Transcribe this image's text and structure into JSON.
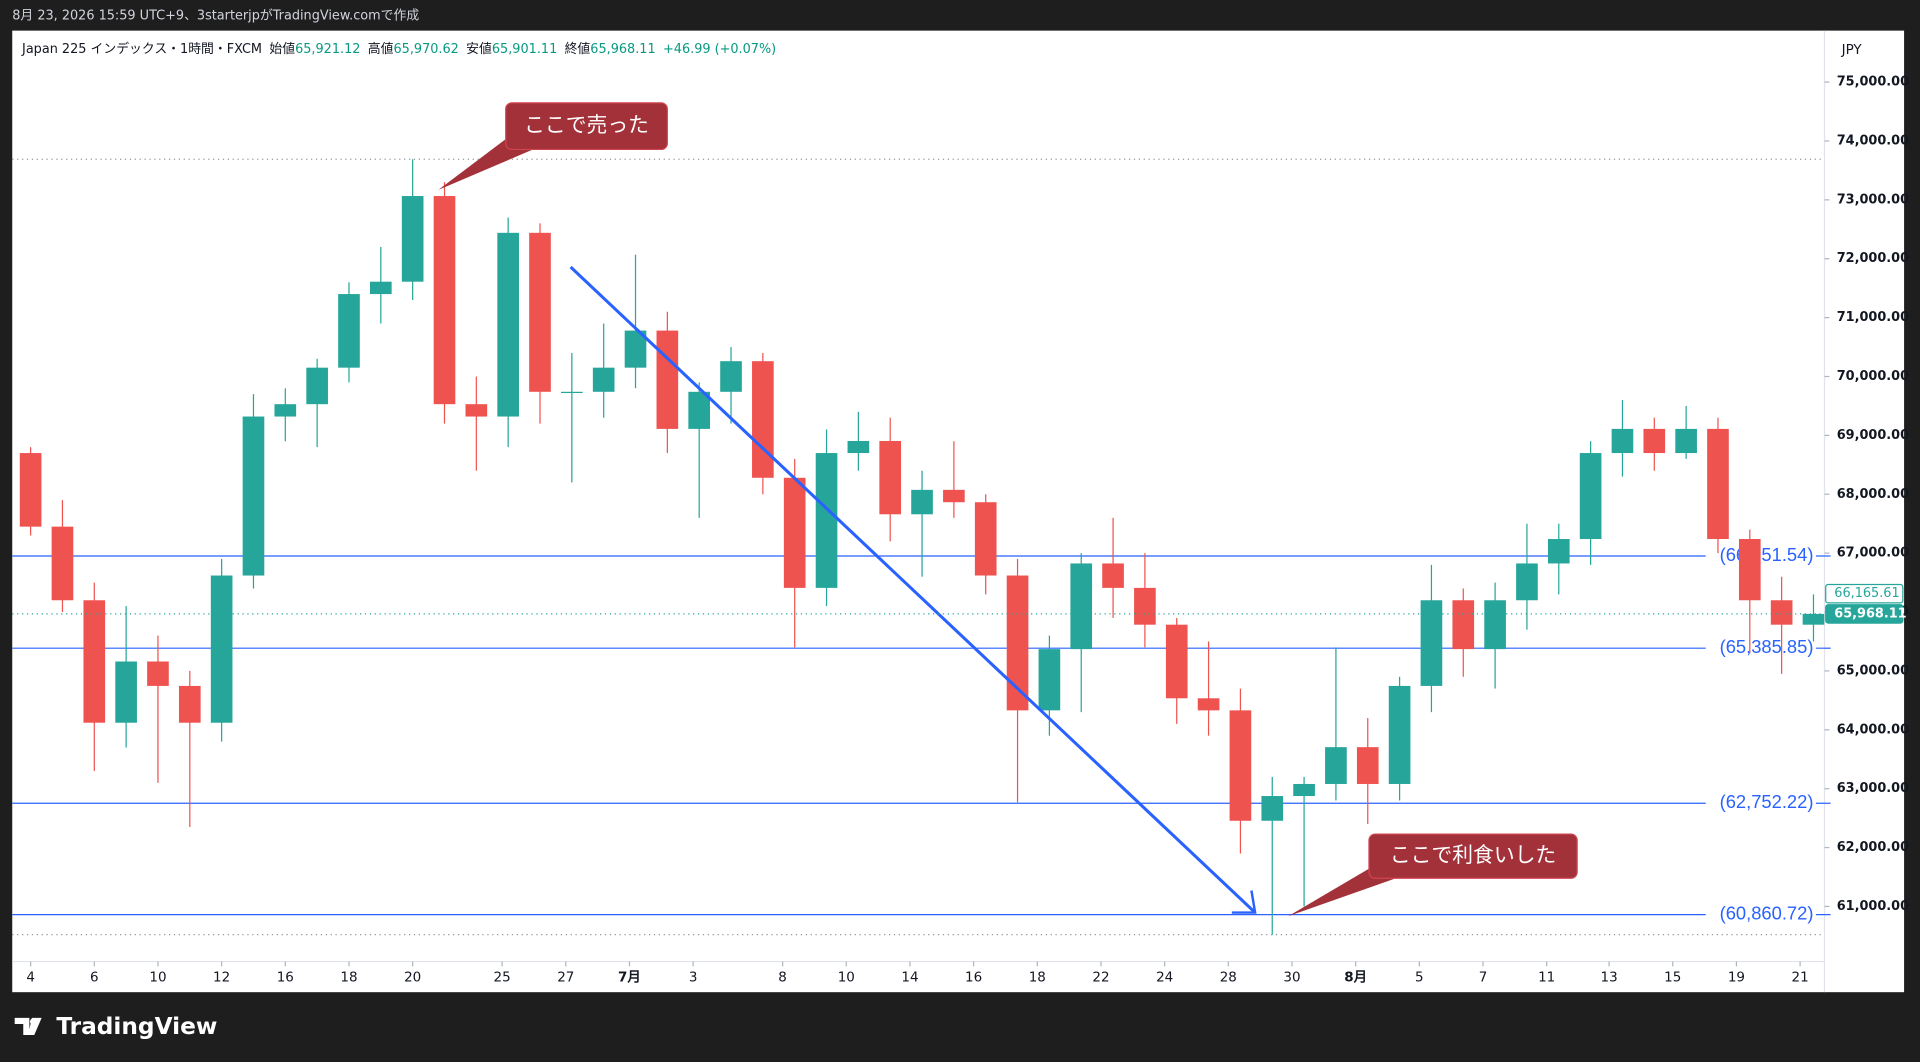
{
  "header": {
    "text": "8月 23, 2026 15:59 UTC+9、3starterjpがTradingView.comで作成"
  },
  "chart_data": {
    "type": "candlestick",
    "symbol": "Japan 225 インデックス・1時間・FXCM",
    "ohlc_legend": {
      "open_label": "始値",
      "open": {
        "value": 65921.12,
        "label": "65,921.12"
      },
      "high_label": "高値",
      "high": {
        "value": 65970.62,
        "label": "65,970.62"
      },
      "low_label": "安値",
      "low": {
        "value": 65901.11,
        "label": "65,901.11"
      },
      "close_label": "終値",
      "close": {
        "value": 65968.11,
        "label": "65,968.11"
      },
      "change": "+46.99 (+0.07%)"
    },
    "currency": "JPY",
    "x": [
      0,
      1,
      2,
      3,
      4,
      5,
      6,
      7,
      8,
      9,
      10,
      11,
      12,
      13,
      14,
      15,
      16,
      17,
      18,
      19,
      20,
      21,
      22,
      23,
      24,
      25,
      26,
      27,
      28,
      29,
      30,
      31,
      32,
      33,
      34,
      35,
      36,
      37,
      38,
      39,
      40,
      41,
      42,
      43,
      44,
      45,
      46,
      47,
      48,
      49,
      50,
      51,
      52,
      53,
      54,
      55,
      56
    ],
    "open": [
      68700,
      67450,
      66200,
      64120,
      65160,
      64745,
      64120,
      66620,
      69320,
      69530,
      70150,
      71400,
      71610,
      73065,
      69530,
      69320,
      72440,
      69740,
      69740,
      70150,
      70780,
      69110,
      69740,
      70260,
      68280,
      66410,
      68700,
      68905,
      67660,
      68075,
      67865,
      66620,
      64330,
      65370,
      66825,
      66410,
      65785,
      64535,
      64330,
      62455,
      62875,
      63080,
      63705,
      63080,
      64745,
      66200,
      65370,
      66200,
      66825,
      67240,
      68700,
      69110,
      68700,
      69110,
      67240,
      66200,
      65785
    ],
    "high": [
      68800,
      67900,
      66500,
      66100,
      65600,
      65000,
      66900,
      69700,
      69800,
      70300,
      71600,
      72200,
      73690,
      73300,
      70000,
      72700,
      72600,
      70400,
      70900,
      72070,
      71100,
      69900,
      70500,
      70400,
      68600,
      69100,
      69400,
      69300,
      68400,
      68900,
      68000,
      66900,
      65600,
      67000,
      67600,
      67000,
      65900,
      65500,
      64700,
      63200,
      63200,
      65400,
      64200,
      64900,
      66800,
      66400,
      66500,
      67500,
      67500,
      68900,
      69600,
      69300,
      69500,
      69300,
      67400,
      66600,
      66300
    ],
    "low": [
      67300,
      66000,
      63300,
      63700,
      63100,
      62350,
      63800,
      66400,
      68900,
      68800,
      69900,
      70900,
      71300,
      69200,
      68400,
      68800,
      69200,
      68200,
      69300,
      69800,
      68700,
      67600,
      69200,
      68000,
      65400,
      66100,
      68400,
      67200,
      66600,
      67600,
      66300,
      62770,
      63900,
      64300,
      65900,
      65400,
      64100,
      63900,
      61900,
      60520,
      61000,
      62800,
      62400,
      62800,
      64300,
      64900,
      64700,
      65700,
      66300,
      66800,
      68300,
      68400,
      68600,
      67000,
      65300,
      64950,
      65500
    ],
    "close": [
      67450,
      66200,
      64120,
      65160,
      64745,
      64120,
      66620,
      69320,
      69530,
      70150,
      71400,
      71610,
      73065,
      69530,
      69320,
      72440,
      69740,
      69740,
      70150,
      70780,
      69110,
      69740,
      70260,
      68280,
      66410,
      68700,
      68905,
      67660,
      68075,
      67865,
      66620,
      64330,
      65370,
      66825,
      66410,
      65785,
      64535,
      64330,
      62455,
      62875,
      63080,
      63705,
      63080,
      64745,
      66200,
      65370,
      66200,
      66825,
      67240,
      68700,
      69110,
      68700,
      69110,
      67240,
      66200,
      65785,
      65968.11
    ],
    "up_color": "#26a69a",
    "down_color": "#ef5350",
    "xlim": [
      -0.577,
      56.346
    ],
    "xticks": [
      {
        "value": 0,
        "label": "4"
      },
      {
        "value": 2,
        "label": "6"
      },
      {
        "value": 4,
        "label": "10"
      },
      {
        "value": 6,
        "label": "12"
      },
      {
        "value": 8,
        "label": "16"
      },
      {
        "value": 10,
        "label": "18"
      },
      {
        "value": 12,
        "label": "20"
      },
      {
        "value": 14.81,
        "label": "25"
      },
      {
        "value": 16.81,
        "label": "27"
      },
      {
        "value": 18.81,
        "label": "7月"
      },
      {
        "value": 20.81,
        "label": "3"
      },
      {
        "value": 23.62,
        "label": "8"
      },
      {
        "value": 25.62,
        "label": "10"
      },
      {
        "value": 27.62,
        "label": "14"
      },
      {
        "value": 29.62,
        "label": "16"
      },
      {
        "value": 31.62,
        "label": "18"
      },
      {
        "value": 33.62,
        "label": "22"
      },
      {
        "value": 35.62,
        "label": "24"
      },
      {
        "value": 37.62,
        "label": "28"
      },
      {
        "value": 39.62,
        "label": "30"
      },
      {
        "value": 41.62,
        "label": "8月"
      },
      {
        "value": 43.62,
        "label": "5"
      },
      {
        "value": 45.62,
        "label": "7"
      },
      {
        "value": 47.62,
        "label": "11"
      },
      {
        "value": 49.58,
        "label": "13"
      },
      {
        "value": 51.58,
        "label": "15"
      },
      {
        "value": 53.58,
        "label": "19"
      },
      {
        "value": 55.58,
        "label": "21"
      }
    ],
    "ylim": [
      60064,
      75874
    ],
    "yticks": [
      {
        "value": 61000,
        "label": "61,000.00"
      },
      {
        "value": 62000,
        "label": "62,000.00"
      },
      {
        "value": 63000,
        "label": "63,000.00"
      },
      {
        "value": 64000,
        "label": "64,000.00"
      },
      {
        "value": 65000,
        "label": "65,000.00"
      },
      {
        "value": 66000,
        "label": "66,000.00"
      },
      {
        "value": 67000,
        "label": "67,000.00"
      },
      {
        "value": 68000,
        "label": "68,000.00"
      },
      {
        "value": 69000,
        "label": "69,000.00"
      },
      {
        "value": 70000,
        "label": "70,000.00"
      },
      {
        "value": 71000,
        "label": "71,000.00"
      },
      {
        "value": 72000,
        "label": "72,000.00"
      },
      {
        "value": 73000,
        "label": "73,000.00"
      },
      {
        "value": 74000,
        "label": "74,000.00"
      },
      {
        "value": 75000,
        "label": "75,000.00"
      }
    ],
    "levels": [
      {
        "value": 66951.54,
        "label": "(66,951.54)"
      },
      {
        "value": 65385.85,
        "label": "(65,385.85)"
      },
      {
        "value": 62752.22,
        "label": "(62,752.22)"
      },
      {
        "value": 60860.72,
        "label": "(60,860.72)"
      }
    ],
    "level_color": "#2962ff",
    "price_tags": [
      {
        "value": 66165.61,
        "label": "66,165.61"
      },
      {
        "value": 65968.11,
        "label": "65,968.11"
      }
    ],
    "annotations": [
      "ここで売った",
      "ここで利食いした"
    ]
  },
  "footer": {
    "brand": "TradingView"
  }
}
